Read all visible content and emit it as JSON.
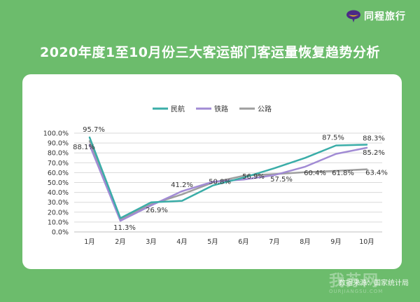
{
  "brand": {
    "name": "同程旅行",
    "logo_color": "#4b2a87",
    "logo_accent": "#f5c518"
  },
  "title": "2020年度1至10月份三大客运部门客运量恢复趋势分析",
  "source": "数据来源：国家统计局",
  "watermark": {
    "text": "我苏网",
    "sub": "OURJIANGSU.COM"
  },
  "chart_data": {
    "type": "line",
    "title": "2020年度1至10月份三大客运部门客运量恢复趋势分析",
    "categories": [
      "1月",
      "2月",
      "3月",
      "4月",
      "5月",
      "6月",
      "7月",
      "8月",
      "9月",
      "10月"
    ],
    "ylim": [
      0,
      100
    ],
    "yticks": [
      0,
      10,
      20,
      30,
      40,
      50,
      60,
      70,
      80,
      90,
      100
    ],
    "ytick_labels": [
      "0.0%",
      "10.0%",
      "20.0%",
      "30.0%",
      "40.0%",
      "50.0%",
      "60.0%",
      "70.0%",
      "80.0%",
      "90.0%",
      "100.0%"
    ],
    "grid": true,
    "legend_position": "top",
    "series": [
      {
        "name": "民航",
        "color": "#3aada8",
        "values": [
          95.7,
          14,
          30,
          31.5,
          47,
          55,
          64.5,
          75,
          87.5,
          88.3
        ],
        "labels": [
          "95.7%",
          "",
          "",
          "",
          "",
          "",
          "",
          "",
          "87.5%",
          "88.3%"
        ]
      },
      {
        "name": "铁路",
        "color": "#a18bd4",
        "values": [
          88.1,
          11.3,
          26.9,
          41.2,
          50.8,
          53,
          57.5,
          66,
          79,
          85.2
        ],
        "labels": [
          "88.1%",
          "11.3%",
          "26.9%",
          "41.2%",
          "50.8%",
          "",
          "57.5%",
          "",
          "",
          "85.2%"
        ]
      },
      {
        "name": "公路",
        "color": "#9e9e9e",
        "values": [
          92,
          12.5,
          28,
          38,
          50,
          56.9,
          58.5,
          60.4,
          61.8,
          63.4
        ],
        "labels": [
          "",
          "",
          "",
          "",
          "",
          "56.9%",
          "",
          "60.4%",
          "61.8%",
          "63.4%"
        ]
      }
    ]
  }
}
